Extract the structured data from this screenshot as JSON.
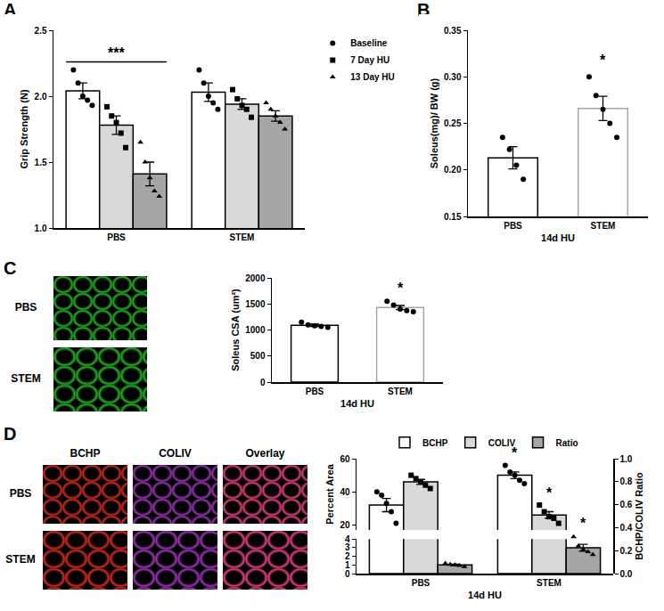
{
  "chart_data": [
    {
      "title": "A",
      "type": "bar",
      "categories": [
        "PBS",
        "STEM"
      ],
      "ylabel": "Grip Strength (N)",
      "ylim": [
        1.0,
        2.5
      ],
      "yticks": [
        {
          "value": 1,
          "label": "1.0"
        },
        {
          "value": 1.5,
          "label": "1.5"
        },
        {
          "value": 2,
          "label": "2.0"
        },
        {
          "value": 2.5,
          "label": "2.5"
        }
      ],
      "legend": "right",
      "series": [
        {
          "name": "Baseline",
          "color": "#ffffff",
          "marker": "circle",
          "values": [
            2.04,
            2.03
          ],
          "errors": [
            0.06,
            0.07
          ],
          "points": [
            [
              2.2,
              2.1,
              2.0,
              1.97,
              1.93
            ],
            [
              2.2,
              2.1,
              2.0,
              1.95,
              1.9
            ]
          ]
        },
        {
          "name": "7 Day HU",
          "color": "#d9d9d9",
          "marker": "square",
          "values": [
            1.78,
            1.94
          ],
          "errors": [
            0.07,
            0.04
          ],
          "points": [
            [
              1.92,
              1.85,
              1.8,
              1.72,
              1.61
            ],
            [
              2.05,
              1.98,
              1.93,
              1.9,
              1.84
            ]
          ]
        },
        {
          "name": "13 Day HU",
          "color": "#a6a6a6",
          "marker": "triangle",
          "values": [
            1.41,
            1.85
          ],
          "errors": [
            0.09,
            0.04
          ],
          "points": [
            [
              1.65,
              1.5,
              1.38,
              1.28,
              1.24
            ],
            [
              1.95,
              1.9,
              1.85,
              1.8,
              1.75
            ]
          ]
        }
      ],
      "annotations": [
        {
          "text": "***",
          "category": "PBS"
        }
      ]
    },
    {
      "title": "B",
      "type": "bar",
      "categories": [
        "PBS",
        "STEM"
      ],
      "ylabel": "Soleus(mg)/ BW (g)",
      "xlabel": "14d HU",
      "ylim": [
        0.15,
        0.35
      ],
      "yticks": [
        {
          "value": 0.15,
          "label": "0.15"
        },
        {
          "value": 0.2,
          "label": "0.20"
        },
        {
          "value": 0.25,
          "label": "0.25"
        },
        {
          "value": 0.3,
          "label": "0.30"
        },
        {
          "value": 0.35,
          "label": "0.35"
        }
      ],
      "colors": [
        "#000000",
        "#a6a6a6"
      ],
      "marker": "circle",
      "values": [
        0.213,
        0.266
      ],
      "errors": [
        0.012,
        0.013
      ],
      "points": [
        [
          0.235,
          0.222,
          0.205,
          0.19
        ],
        [
          0.3,
          0.28,
          0.265,
          0.25,
          0.235
        ]
      ],
      "annotations": [
        {
          "text": "*",
          "category": "STEM"
        }
      ]
    },
    {
      "title": "C",
      "type": "bar",
      "categories": [
        "PBS",
        "STEM"
      ],
      "image_labels": {
        "rows": [
          "PBS",
          "STEM"
        ]
      },
      "ylabel": "Soleus CSA (um²)",
      "xlabel": "14d HU",
      "ylim": [
        0,
        2000
      ],
      "yticks": [
        0,
        500,
        1000,
        1500,
        2000
      ],
      "colors": [
        "#000000",
        "#a6a6a6"
      ],
      "marker": "circle",
      "values": [
        1090,
        1430
      ],
      "errors": [
        25,
        40
      ],
      "points": [
        [
          1150,
          1100,
          1080,
          1070,
          1050
        ],
        [
          1550,
          1480,
          1400,
          1370,
          1350
        ]
      ],
      "annotations": [
        {
          "text": "*",
          "category": "STEM"
        }
      ]
    },
    {
      "title": "D",
      "type": "bar",
      "categories": [
        "PBS",
        "STEM"
      ],
      "image_labels": {
        "rows": [
          "PBS",
          "STEM"
        ],
        "columns": [
          "BCHP",
          "COLIV",
          "Overlay"
        ]
      },
      "ylabel": "Percent Area",
      "y2label": "BCHP/COLIV Ratio",
      "xlabel": "14d HU",
      "ylim": [
        [
          0,
          4
        ],
        [
          17,
          60
        ]
      ],
      "yticks": [
        [
          0,
          1,
          2,
          3,
          4
        ],
        [
          20,
          40,
          60
        ]
      ],
      "y2lim": [
        0,
        1
      ],
      "y2ticks": [
        {
          "value": 0,
          "label": "0.0"
        },
        {
          "value": 0.2,
          "label": "0.2"
        },
        {
          "value": 0.4,
          "label": "0.4"
        },
        {
          "value": 0.6,
          "label": "0.6"
        },
        {
          "value": 0.8,
          "label": "0.8"
        },
        {
          "value": 1,
          "label": "1.0"
        }
      ],
      "legend": "top",
      "series": [
        {
          "name": "BCHP",
          "color": "#ffffff",
          "marker": "circle",
          "values": [
            32,
            50
          ],
          "errors": [
            4,
            2
          ],
          "points": [
            [
              40,
              38,
              33,
              28,
              21
            ],
            [
              56,
              52,
              50,
              47,
              45
            ]
          ]
        },
        {
          "name": "COLIV",
          "color": "#d9d9d9",
          "marker": "square",
          "values": [
            46,
            26
          ],
          "errors": [
            1.5,
            2
          ],
          "points": [
            [
              50,
              48,
              46,
              44,
              42
            ],
            [
              32,
              28,
              25,
              24,
              21
            ]
          ]
        },
        {
          "name": "Ratio",
          "color": "#a6a6a6",
          "marker": "triangle",
          "axis": "y2",
          "values": [
            0.075,
            0.225
          ],
          "errors": [
            0.008,
            0.03
          ],
          "points": [
            [
              0.09,
              0.08,
              0.075,
              0.07,
              0.06
            ],
            [
              0.32,
              0.24,
              0.21,
              0.19,
              0.165
            ]
          ]
        }
      ],
      "annotations": [
        {
          "text": "*",
          "category": "STEM",
          "series": "BCHP"
        },
        {
          "text": "*",
          "category": "STEM",
          "series": "COLIV"
        },
        {
          "text": "*",
          "category": "STEM",
          "series": "Ratio"
        }
      ]
    }
  ]
}
